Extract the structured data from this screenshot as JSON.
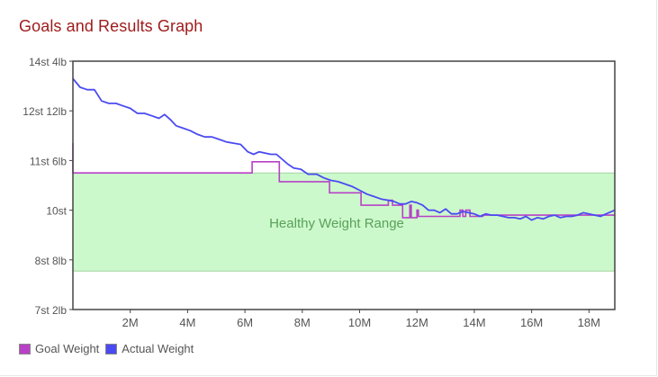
{
  "title": "Goals and Results Graph",
  "colors": {
    "goal": "#b841c7",
    "actual": "#4a4af2",
    "band_fill": "#ccf9cc",
    "band_edge": "#9fd49f",
    "band_text": "#5aa05a",
    "axis": "#444444",
    "tick_text": "#555555"
  },
  "chart_data": {
    "type": "line",
    "title": "Goals and Results Graph",
    "xlabel": "",
    "ylabel": "",
    "x_unit": "months",
    "y_unit": "lb",
    "xlim": [
      0,
      18.9
    ],
    "ylim": [
      100,
      200
    ],
    "x_ticks": [
      {
        "value": 2,
        "label": "2M"
      },
      {
        "value": 4,
        "label": "4M"
      },
      {
        "value": 6,
        "label": "6M"
      },
      {
        "value": 8,
        "label": "8M"
      },
      {
        "value": 10,
        "label": "10M"
      },
      {
        "value": 12,
        "label": "12M"
      },
      {
        "value": 14,
        "label": "14M"
      },
      {
        "value": 16,
        "label": "16M"
      },
      {
        "value": 18,
        "label": "18M"
      }
    ],
    "y_ticks": [
      {
        "value": 100,
        "label": "7st 2lb"
      },
      {
        "value": 120,
        "label": "8st 8lb"
      },
      {
        "value": 140,
        "label": "10st"
      },
      {
        "value": 160,
        "label": "11st 6lb"
      },
      {
        "value": 180,
        "label": "12st 12lb"
      },
      {
        "value": 200,
        "label": "14st 4lb"
      }
    ],
    "band": {
      "label": "Healthy Weight Range",
      "y_min": 115.5,
      "y_max": 155.0
    },
    "legend_position": "bottom-left",
    "series": [
      {
        "name": "Goal Weight",
        "color_key": "goal",
        "points": [
          [
            0,
            167
          ],
          [
            0,
            155
          ],
          [
            6.25,
            155
          ],
          [
            6.25,
            159.5
          ],
          [
            7.2,
            159.5
          ],
          [
            7.2,
            151.5
          ],
          [
            8.95,
            151.5
          ],
          [
            8.95,
            147
          ],
          [
            10.05,
            147
          ],
          [
            10.05,
            142
          ],
          [
            11.0,
            142
          ],
          [
            11.0,
            144
          ],
          [
            11.15,
            144
          ],
          [
            11.15,
            142
          ],
          [
            11.5,
            142
          ],
          [
            11.5,
            137
          ],
          [
            11.75,
            137
          ],
          [
            11.75,
            142
          ],
          [
            11.8,
            142
          ],
          [
            11.8,
            137
          ],
          [
            12.0,
            137
          ],
          [
            12.0,
            140
          ],
          [
            12.05,
            140
          ],
          [
            12.05,
            137.5
          ],
          [
            13.5,
            137.5
          ],
          [
            13.5,
            140
          ],
          [
            13.6,
            140
          ],
          [
            13.6,
            137.5
          ],
          [
            13.7,
            137.5
          ],
          [
            13.7,
            140
          ],
          [
            13.85,
            140
          ],
          [
            13.85,
            137.5
          ],
          [
            14.3,
            137.5
          ],
          [
            14.3,
            138
          ],
          [
            18.9,
            138
          ]
        ]
      },
      {
        "name": "Actual Weight",
        "color_key": "actual",
        "points": [
          [
            0,
            193
          ],
          [
            0.25,
            189.5
          ],
          [
            0.5,
            188.5
          ],
          [
            0.75,
            188.5
          ],
          [
            1.0,
            184
          ],
          [
            1.25,
            183
          ],
          [
            1.5,
            183
          ],
          [
            1.75,
            182
          ],
          [
            2.0,
            181
          ],
          [
            2.25,
            179
          ],
          [
            2.5,
            179
          ],
          [
            2.75,
            178
          ],
          [
            3.0,
            177
          ],
          [
            3.2,
            178.5
          ],
          [
            3.4,
            176.5
          ],
          [
            3.6,
            174
          ],
          [
            3.85,
            173
          ],
          [
            4.1,
            172
          ],
          [
            4.35,
            170.5
          ],
          [
            4.6,
            169.5
          ],
          [
            4.85,
            169.5
          ],
          [
            5.1,
            168.5
          ],
          [
            5.35,
            167.5
          ],
          [
            5.6,
            167
          ],
          [
            5.85,
            166.5
          ],
          [
            6.1,
            163.5
          ],
          [
            6.3,
            162.5
          ],
          [
            6.5,
            163.5
          ],
          [
            6.7,
            163
          ],
          [
            6.9,
            162.5
          ],
          [
            7.1,
            162.5
          ],
          [
            7.3,
            160.5
          ],
          [
            7.5,
            158.5
          ],
          [
            7.7,
            157
          ],
          [
            7.95,
            156.5
          ],
          [
            8.2,
            154.5
          ],
          [
            8.5,
            154.5
          ],
          [
            8.75,
            153
          ],
          [
            9.0,
            152
          ],
          [
            9.25,
            151.5
          ],
          [
            9.5,
            150.5
          ],
          [
            9.75,
            149.5
          ],
          [
            10.0,
            148
          ],
          [
            10.25,
            146.5
          ],
          [
            10.5,
            145.5
          ],
          [
            10.75,
            144.5
          ],
          [
            11.0,
            144
          ],
          [
            11.2,
            143.5
          ],
          [
            11.4,
            142.5
          ],
          [
            11.6,
            142.5
          ],
          [
            11.8,
            143.5
          ],
          [
            12.0,
            143
          ],
          [
            12.2,
            142
          ],
          [
            12.4,
            140
          ],
          [
            12.6,
            140
          ],
          [
            12.8,
            139
          ],
          [
            13.0,
            140.5
          ],
          [
            13.2,
            138.5
          ],
          [
            13.4,
            138.5
          ],
          [
            13.6,
            139.5
          ],
          [
            13.8,
            139
          ],
          [
            14.0,
            138.5
          ],
          [
            14.2,
            137.5
          ],
          [
            14.4,
            138.5
          ],
          [
            14.6,
            138
          ],
          [
            14.8,
            138
          ],
          [
            15.0,
            137.5
          ],
          [
            15.2,
            137
          ],
          [
            15.4,
            137
          ],
          [
            15.6,
            136.5
          ],
          [
            15.8,
            137.5
          ],
          [
            16.0,
            136
          ],
          [
            16.2,
            137
          ],
          [
            16.4,
            136.5
          ],
          [
            16.6,
            137.5
          ],
          [
            16.8,
            138
          ],
          [
            17.0,
            137
          ],
          [
            17.2,
            137.5
          ],
          [
            17.4,
            137.5
          ],
          [
            17.6,
            138
          ],
          [
            17.8,
            139
          ],
          [
            18.0,
            138.5
          ],
          [
            18.2,
            138
          ],
          [
            18.4,
            137.5
          ],
          [
            18.6,
            138.5
          ],
          [
            18.9,
            140
          ]
        ]
      }
    ]
  }
}
